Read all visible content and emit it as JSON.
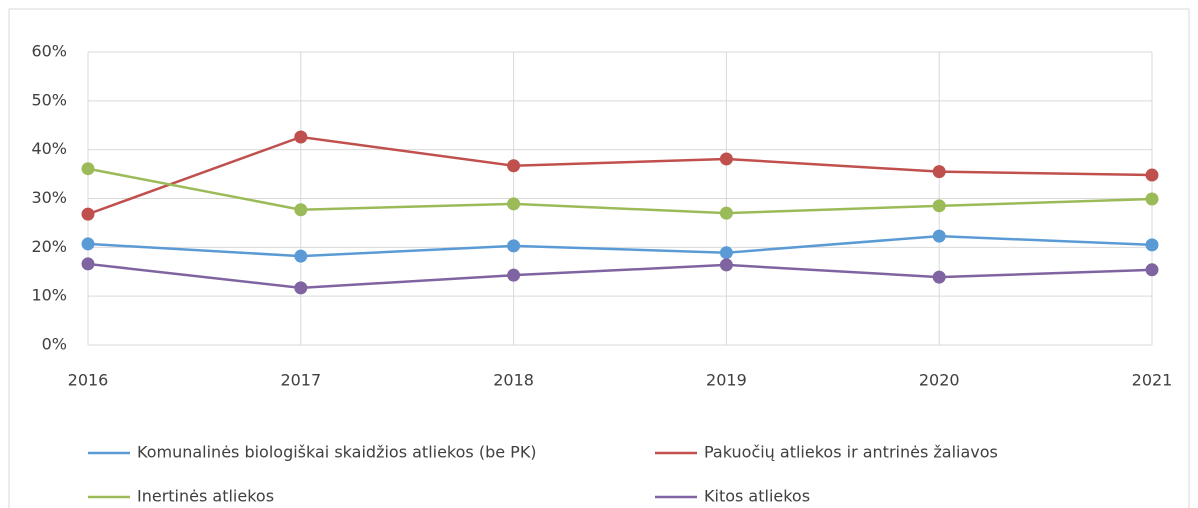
{
  "chart_data": {
    "type": "line",
    "categories": [
      "2016",
      "2017",
      "2018",
      "2019",
      "2020",
      "2021"
    ],
    "series": [
      {
        "name": "Komunalinės biologiškai skaidžios atliekos (be PK)",
        "color": "#5b9bd5",
        "values": [
          20.7,
          18.2,
          20.3,
          18.9,
          22.3,
          20.5
        ]
      },
      {
        "name": "Pakuočių atliekos ir antrinės žaliavos",
        "color": "#c0504d",
        "values": [
          26.8,
          42.6,
          36.7,
          38.1,
          35.5,
          34.8
        ]
      },
      {
        "name": "Inertinės atliekos",
        "color": "#9bbb59",
        "values": [
          36.1,
          27.7,
          28.9,
          27.0,
          28.5,
          29.9
        ]
      },
      {
        "name": "Kitos atliekos",
        "color": "#8064a2",
        "values": [
          16.6,
          11.7,
          14.3,
          16.4,
          13.9,
          15.4
        ]
      }
    ],
    "ylim": [
      0,
      60
    ],
    "yticks": [
      {
        "value": 0,
        "label": "0%"
      },
      {
        "value": 10,
        "label": "10%"
      },
      {
        "value": 20,
        "label": "20%"
      },
      {
        "value": 30,
        "label": "30%"
      },
      {
        "value": 40,
        "label": "40%"
      },
      {
        "value": 50,
        "label": "50%"
      },
      {
        "value": 60,
        "label": "60%"
      }
    ],
    "grid": true
  }
}
